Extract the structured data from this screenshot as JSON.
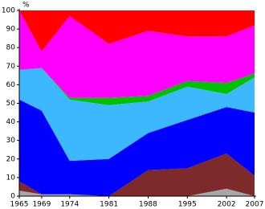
{
  "chart_data": {
    "type": "stacked_area",
    "y_label": "%",
    "x": [
      1965,
      1969,
      1974,
      1981,
      1988,
      1995,
      2002,
      2007
    ],
    "xlim": [
      1965,
      2007
    ],
    "xticks": [
      1965,
      1969,
      1974,
      1981,
      1988,
      1995,
      2002,
      2007
    ],
    "ylim": [
      0,
      100
    ],
    "yticks": [
      0,
      10,
      20,
      30,
      40,
      50,
      60,
      70,
      80,
      90,
      100
    ],
    "series": [
      {
        "color": "#a8a8a8",
        "values": [
          3,
          1,
          1,
          0,
          0,
          0,
          4,
          0
        ]
      },
      {
        "color": "#7f2a2a",
        "values": [
          5,
          0,
          0,
          0,
          14,
          15,
          19,
          11
        ]
      },
      {
        "color": "#0000ff",
        "values": [
          44,
          45,
          18,
          20,
          20,
          26,
          25,
          34
        ]
      },
      {
        "color": "#3cb8ff",
        "values": [
          16,
          23,
          33,
          29,
          17,
          18,
          7,
          19
        ]
      },
      {
        "color": "#00c000",
        "values": [
          0,
          0,
          1,
          4,
          3,
          3,
          6,
          2
        ]
      },
      {
        "color": "#ff00ff",
        "values": [
          32,
          9,
          44,
          29,
          35,
          24,
          25,
          26
        ]
      },
      {
        "color": "#ff0000",
        "values": [
          0,
          22,
          3,
          18,
          11,
          14,
          14,
          8
        ]
      }
    ]
  }
}
